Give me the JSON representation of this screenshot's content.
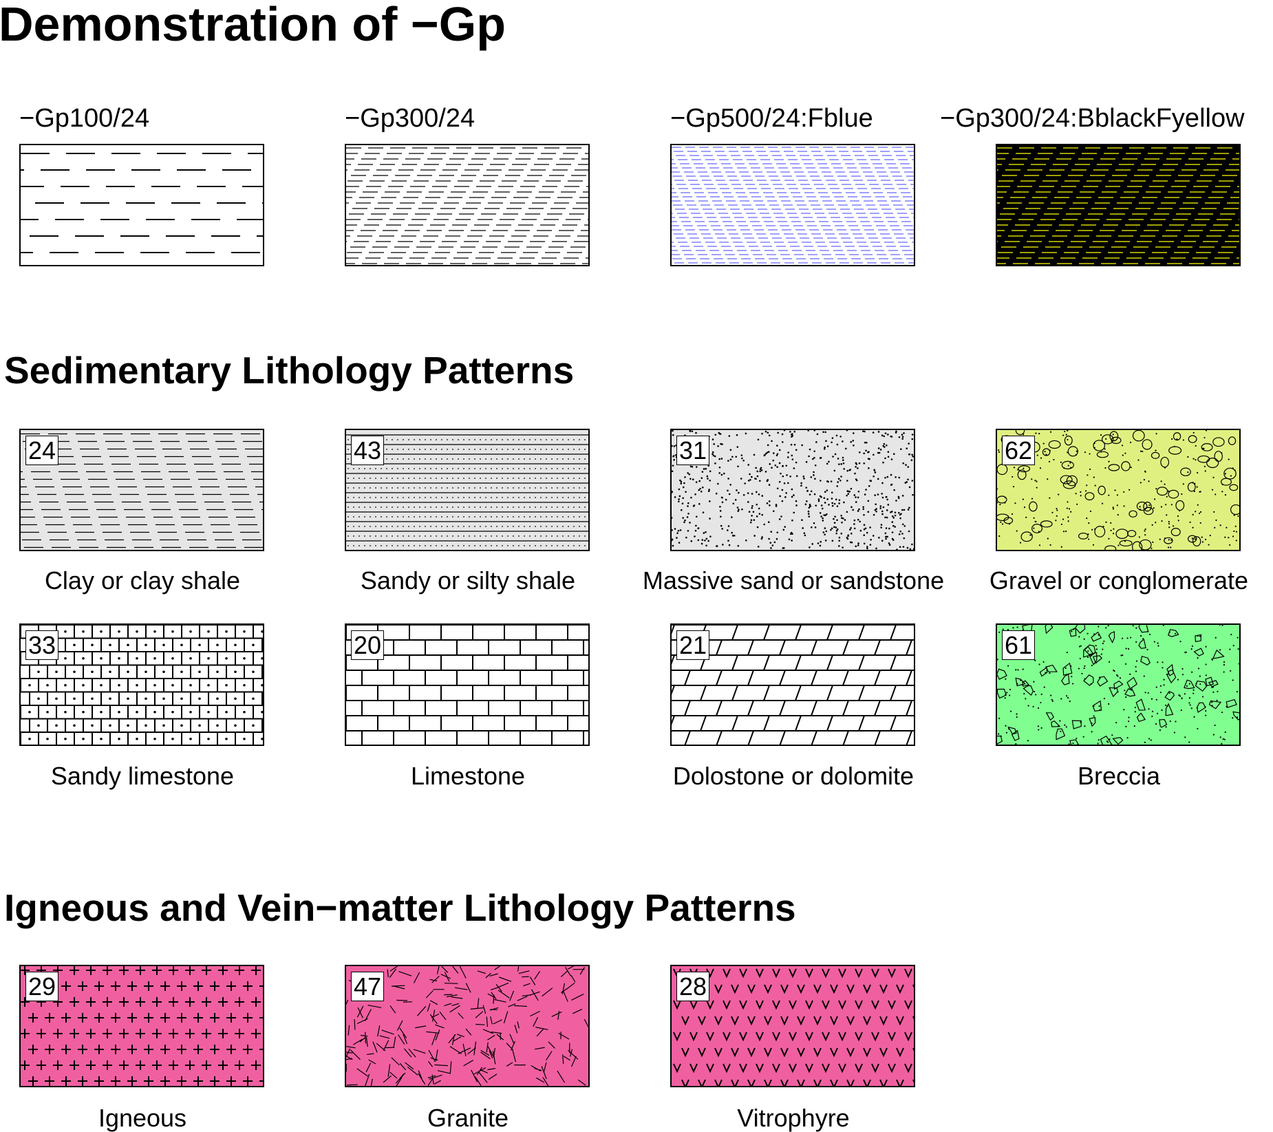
{
  "title": "Demonstration of −Gp",
  "demo": {
    "items": [
      {
        "label": "−Gp100/24",
        "bg": "#ffffff",
        "fg": "#000000",
        "pattern": "dashes-sparse"
      },
      {
        "label": "−Gp300/24",
        "bg": "#ffffff",
        "fg": "#000000",
        "pattern": "dashes-dense"
      },
      {
        "label": "−Gp500/24:Fblue",
        "bg": "#ffffff",
        "fg": "#0000ff",
        "pattern": "dashes-fine"
      },
      {
        "label": "−Gp300/24:BblackFyellow",
        "bg": "#000000",
        "fg": "#ffff00",
        "pattern": "dashes-dense"
      }
    ]
  },
  "sedimentary": {
    "title": "Sedimentary Lithology Patterns",
    "items": [
      {
        "number": "24",
        "caption": "Clay or clay shale",
        "pattern": "clay",
        "bg": "#e6e6e6"
      },
      {
        "number": "43",
        "caption": "Sandy or silty shale",
        "pattern": "sandy-shale",
        "bg": "#e6e6e6"
      },
      {
        "number": "31",
        "caption": "Massive sand or sandstone",
        "pattern": "sand",
        "bg": "#e6e6e6"
      },
      {
        "number": "62",
        "caption": "Gravel or conglomerate",
        "pattern": "gravel",
        "bg": "#e0f080"
      },
      {
        "number": "33",
        "caption": "Sandy limestone",
        "pattern": "sandy-limestone",
        "bg": "#ffffff"
      },
      {
        "number": "20",
        "caption": "Limestone",
        "pattern": "limestone",
        "bg": "#ffffff"
      },
      {
        "number": "21",
        "caption": "Dolostone or dolomite",
        "pattern": "dolomite",
        "bg": "#ffffff"
      },
      {
        "number": "61",
        "caption": "Breccia",
        "pattern": "breccia",
        "bg": "#80ff90"
      }
    ]
  },
  "igneous": {
    "title": "Igneous and Vein−matter Lithology Patterns",
    "items": [
      {
        "number": "29",
        "caption": "Igneous",
        "pattern": "crosses",
        "bg": "#f060a0"
      },
      {
        "number": "47",
        "caption": "Granite",
        "pattern": "granite",
        "bg": "#f060a0"
      },
      {
        "number": "28",
        "caption": "Vitrophyre",
        "pattern": "vees",
        "bg": "#f060a0"
      }
    ]
  }
}
